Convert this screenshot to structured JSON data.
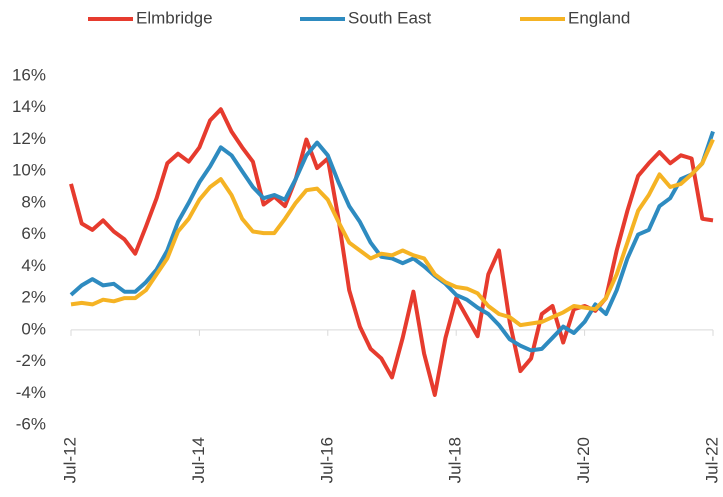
{
  "chart_data": {
    "type": "line",
    "categories": [
      "Jul-12",
      null,
      null,
      null,
      null,
      null,
      null,
      null,
      null,
      null,
      null,
      null,
      "Jul-14",
      null,
      null,
      null,
      null,
      null,
      null,
      null,
      null,
      null,
      null,
      null,
      "Jul-16",
      null,
      null,
      null,
      null,
      null,
      null,
      null,
      null,
      null,
      null,
      null,
      "Jul-18",
      null,
      null,
      null,
      null,
      null,
      null,
      null,
      null,
      null,
      null,
      null,
      "Jul-20",
      null,
      null,
      null,
      null,
      null,
      null,
      null,
      null,
      null,
      null,
      null,
      "Jul-22"
    ],
    "series": [
      {
        "name": "Elmbridge",
        "color": "#e63b2e",
        "values": [
          9.2,
          6.7,
          6.3,
          6.9,
          6.2,
          5.7,
          4.8,
          6.5,
          8.3,
          10.5,
          11.1,
          10.6,
          11.5,
          13.2,
          13.9,
          12.5,
          11.5,
          10.6,
          7.9,
          8.4,
          7.8,
          9.5,
          12.0,
          10.2,
          10.8,
          7.0,
          2.5,
          0.2,
          -1.2,
          -1.8,
          -3.0,
          -0.5,
          2.4,
          -1.5,
          -4.1,
          -0.5,
          2.0,
          0.8,
          -0.4,
          3.5,
          5.0,
          0.5,
          -2.6,
          -1.8,
          1.0,
          1.5,
          -0.8,
          1.3,
          1.5,
          1.2,
          2.0,
          5.0,
          7.5,
          9.7,
          10.5,
          11.2,
          10.5,
          11.0,
          10.8,
          7.0,
          6.9
        ]
      },
      {
        "name": "South East",
        "color": "#2e8bc0",
        "values": [
          2.2,
          2.8,
          3.2,
          2.8,
          2.9,
          2.4,
          2.4,
          3.0,
          3.8,
          5.0,
          6.8,
          8.0,
          9.3,
          10.3,
          11.5,
          11.0,
          10.0,
          9.0,
          8.3,
          8.5,
          8.2,
          9.5,
          11.0,
          11.8,
          11.0,
          9.3,
          7.8,
          6.8,
          5.5,
          4.6,
          4.5,
          4.2,
          4.5,
          4.0,
          3.4,
          2.9,
          2.2,
          1.9,
          1.4,
          1.0,
          0.3,
          -0.6,
          -1.0,
          -1.3,
          -1.2,
          -0.5,
          0.2,
          -0.2,
          0.5,
          1.6,
          1.0,
          2.5,
          4.5,
          6.0,
          6.3,
          7.8,
          8.3,
          9.5,
          9.8,
          10.5,
          12.5
        ]
      },
      {
        "name": "England",
        "color": "#f5b324",
        "values": [
          1.6,
          1.7,
          1.6,
          1.9,
          1.8,
          2.0,
          2.0,
          2.5,
          3.5,
          4.5,
          6.2,
          7.0,
          8.2,
          9.0,
          9.5,
          8.5,
          7.0,
          6.2,
          6.1,
          6.1,
          7.0,
          8.0,
          8.8,
          8.9,
          8.2,
          6.8,
          5.5,
          5.0,
          4.5,
          4.8,
          4.7,
          5.0,
          4.7,
          4.5,
          3.5,
          3.0,
          2.7,
          2.6,
          2.3,
          1.5,
          1.0,
          0.8,
          0.3,
          0.4,
          0.5,
          0.8,
          1.1,
          1.5,
          1.4,
          1.3,
          2.0,
          3.5,
          5.5,
          7.5,
          8.5,
          9.8,
          9.0,
          9.2,
          9.8,
          10.5,
          12.0
        ]
      }
    ],
    "ylim": [
      -6,
      16
    ],
    "yticks": [
      {
        "value": -6,
        "label": "-6%"
      },
      {
        "value": -4,
        "label": "-4%"
      },
      {
        "value": -2,
        "label": "-2%"
      },
      {
        "value": 0,
        "label": "0%"
      },
      {
        "value": 2,
        "label": "2%"
      },
      {
        "value": 4,
        "label": "4%"
      },
      {
        "value": 6,
        "label": "6%"
      },
      {
        "value": 8,
        "label": "8%"
      },
      {
        "value": 10,
        "label": "10%"
      },
      {
        "value": 12,
        "label": "12%"
      },
      {
        "value": 14,
        "label": "14%"
      },
      {
        "value": 16,
        "label": "16%"
      }
    ],
    "legend": "top"
  }
}
